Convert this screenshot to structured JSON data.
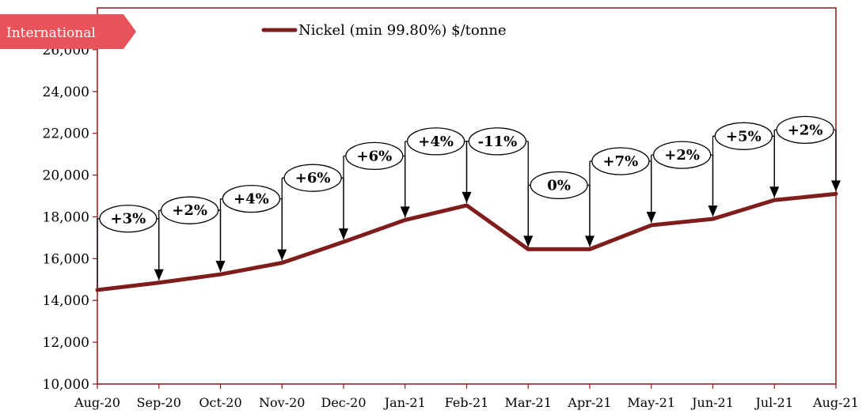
{
  "badge": {
    "text": "International",
    "color": "#e8545a"
  },
  "legend": {
    "label": "Nickel (min 99.80%) $/tonne"
  },
  "chart_data": {
    "type": "line",
    "categories": [
      "Aug-20",
      "Sep-20",
      "Oct-20",
      "Nov-20",
      "Dec-20",
      "Jan-21",
      "Feb-21",
      "Mar-21",
      "Apr-21",
      "May-21",
      "Jun-21",
      "Jul-21",
      "Aug-21"
    ],
    "series": [
      {
        "name": "Nickel (min 99.80%) $/tonne",
        "values": [
          14500,
          14850,
          15250,
          15800,
          16800,
          17850,
          18550,
          16450,
          16450,
          17600,
          17900,
          18800,
          19100
        ],
        "color": "#7f1d1d"
      }
    ],
    "change_labels": [
      "+3%",
      "+2%",
      "+4%",
      "+6%",
      "+6%",
      "+4%",
      "-11%",
      "0%",
      "+7%",
      "+2%",
      "+5%",
      "+2%"
    ],
    "yticks": [
      "10,000",
      "12,000",
      "14,000",
      "16,000",
      "18,000",
      "20,000",
      "22,000",
      "24,000",
      "26,000"
    ],
    "ylim": [
      10000,
      28000
    ],
    "axis_color": "#8b1a1a",
    "grid": false,
    "legend_position": "top-center"
  }
}
